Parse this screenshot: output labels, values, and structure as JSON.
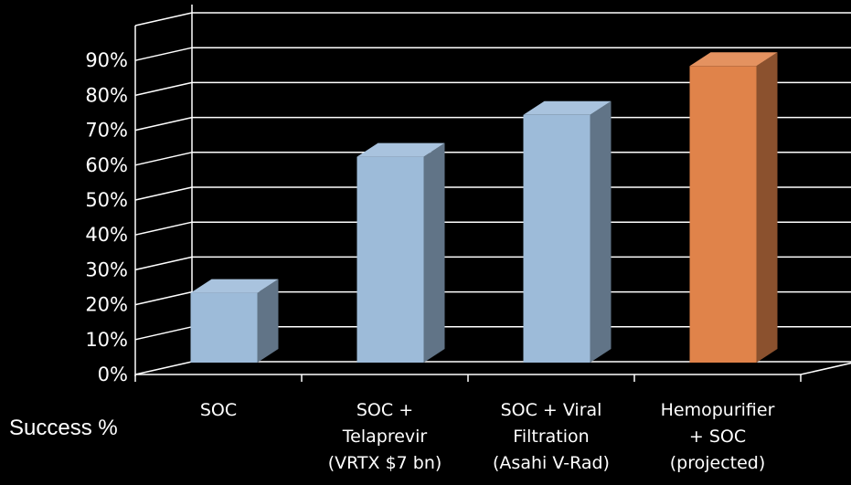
{
  "chart_data": {
    "type": "bar",
    "categories": [
      "SOC",
      "SOC + Telaprevir (VRTX $7 bn)",
      "SOC + Viral Filtration (Asahi V-Rad)",
      "Hemopurifier + SOC (projected)"
    ],
    "category_lines": [
      [
        "SOC"
      ],
      [
        "SOC +",
        "Telaprevir",
        "(VRTX $7 bn)"
      ],
      [
        "SOC + Viral",
        "Filtration",
        "(Asahi V-Rad)"
      ],
      [
        "Hemopurifier",
        "+ SOC",
        "(projected)"
      ]
    ],
    "values": [
      20,
      59,
      71,
      85
    ],
    "yticks": [
      "0%",
      "10%",
      "20%",
      "30%",
      "40%",
      "50%",
      "60%",
      "70%",
      "80%",
      "90%"
    ],
    "ylim": [
      0,
      100
    ],
    "ylabel": "Success %",
    "grid": true,
    "style": "3d",
    "colors": {
      "bar": "#9dbbd9",
      "highlight": "#e0834a",
      "grid": "#ffffff",
      "text": "#ffffff"
    },
    "highlight_index": 3
  }
}
